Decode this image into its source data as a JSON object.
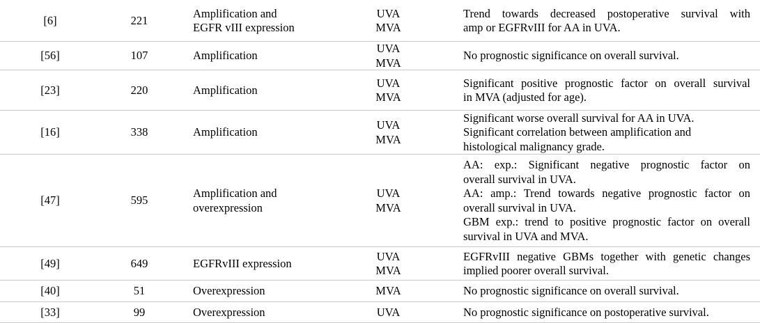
{
  "rows": [
    {
      "ref": "[6]",
      "n": "221",
      "alteration": [
        "Amplification and",
        "EGFR vIII expression"
      ],
      "analysis": [
        "UVA",
        "MVA"
      ],
      "results": [
        {
          "text": "Trend towards decreased postoperative survival with",
          "just": true
        },
        {
          "text": "amp or EGFRvIII for AA in UVA.",
          "just": false
        }
      ]
    },
    {
      "ref": "[56]",
      "n": "107",
      "alteration": [
        "Amplification"
      ],
      "analysis": [
        "UVA",
        "MVA"
      ],
      "results": [
        {
          "text": "No prognostic significance on overall survival.",
          "just": false
        }
      ]
    },
    {
      "ref": "[23]",
      "n": "220",
      "alteration": [
        "Amplification"
      ],
      "analysis": [
        "UVA",
        "MVA"
      ],
      "results": [
        {
          "text": "Significant positive prognostic factor on overall survival",
          "just": true
        },
        {
          "text": "in MVA (adjusted for age).",
          "just": false
        }
      ]
    },
    {
      "ref": "[16]",
      "n": "338",
      "alteration": [
        "Amplification"
      ],
      "analysis": [
        "UVA",
        "MVA"
      ],
      "results": [
        {
          "text": "Significant worse overall survival for AA in UVA.",
          "just": false
        },
        {
          "text": "Significant correlation between amplification and",
          "just": false
        },
        {
          "text": "histological malignancy grade.",
          "just": false
        }
      ]
    },
    {
      "ref": "[47]",
      "n": "595",
      "alteration": [
        "Amplification and",
        "overexpression"
      ],
      "analysis": [
        "UVA",
        "MVA"
      ],
      "results": [
        {
          "text": "AA: exp.: Significant negative prognostic factor on",
          "just": true
        },
        {
          "text": "overall survival in UVA.",
          "just": false
        },
        {
          "text": "AA: amp.: Trend towards negative prognostic factor on",
          "just": true
        },
        {
          "text": "overall survival in UVA.",
          "just": false
        },
        {
          "text": "GBM exp.: trend to positive prognostic factor on overall",
          "just": true
        },
        {
          "text": "survival in UVA and MVA.",
          "just": false
        }
      ]
    },
    {
      "ref": "[49]",
      "n": "649",
      "alteration": [
        "EGFRvIII expression"
      ],
      "analysis": [
        "UVA",
        "MVA"
      ],
      "results": [
        {
          "text": "EGFRvIII negative GBMs together with genetic changes",
          "just": true
        },
        {
          "text": "implied poorer overall survival.",
          "just": false
        }
      ]
    },
    {
      "ref": "[40]",
      "n": "51",
      "alteration": [
        "Overexpression"
      ],
      "analysis": [
        "MVA"
      ],
      "results": [
        {
          "text": "No prognostic significance on overall survival.",
          "just": false
        }
      ]
    },
    {
      "ref": "[33]",
      "n": "99",
      "alteration": [
        "Overexpression"
      ],
      "analysis": [
        "UVA"
      ],
      "results": [
        {
          "text": "No prognostic significance on postoperative survival.",
          "just": false
        }
      ]
    }
  ]
}
